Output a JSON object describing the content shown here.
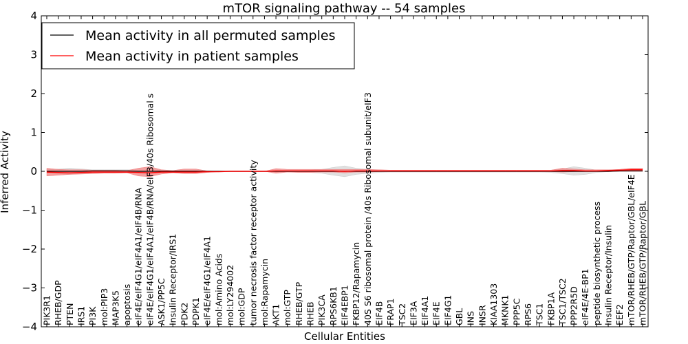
{
  "chart_data": {
    "type": "line",
    "title": "mTOR signaling pathway -- 54 samples",
    "xlabel": "Cellular Entities",
    "ylabel": "Inferred Activity",
    "ylim": [
      -4,
      4
    ],
    "yticks": [
      -4,
      -3,
      -2,
      -1,
      0,
      1,
      2,
      3,
      4
    ],
    "legend_position": "top-left",
    "categories": [
      "PIK3R1",
      "RHEB/GDP",
      "PTEN",
      "IRS1",
      "PI3K",
      "mol:PIP3",
      "MAP3K5",
      "apoptosis",
      "eIF4E/eIF4G1/eIF4A1/eIF4B/RNA",
      "eIF4E/eIF4G1/eIF4A1/eIF4B/RNA/eIF3/40s Ribosomal s",
      "ASK1/PP5C",
      "Insulin Receptor/IRS1",
      "PDK2",
      "PDPK1",
      "eIF4E/eIF4G1/eIF4A1",
      "mol:Amino Acids",
      "mol:LY294002",
      "mol:GDP",
      "tumor necrosis factor receptor activity",
      "mol:Rapamycin",
      "AKT1",
      "mol:GTP",
      "RHEB/GTP",
      "RHEB",
      "PIK3CA",
      "RPS6KB1",
      "EIF4EBP1",
      "FKBP12/Rapamycin",
      "40S S6 ribosomal protein /40s Ribosomal subunit/eIF3",
      "EIF4B",
      "FRAP1",
      "TSC2",
      "EIF3A",
      "EIF4A1",
      "EIF4E",
      "EIF4G1",
      "GBL",
      "INS",
      "INSR",
      "KIAA1303",
      "MKNK1",
      "PPP5C",
      "RPS6",
      "TSC1",
      "FKBP1A",
      "TSC1/TSC2",
      "PPP2R5D",
      "eIF4E/4E-BP1",
      "peptide biosynthetic process",
      "Insulin Receptor/Insulin",
      "EEF2",
      "mTOR/RHEB/GTP/Raptor/GBL/eIF4E",
      "mTOR/RHEB/GTP/Raptor/GBL"
    ],
    "series": [
      {
        "name": "Mean activity in all permuted samples",
        "color": "#000000",
        "values": [
          0.0,
          0.0,
          0.0,
          0.0,
          0.01,
          0.01,
          0.01,
          0.01,
          0.0,
          0.0,
          0.0,
          0.0,
          0.0,
          0.0,
          0.0,
          0.0,
          0.0,
          0.0,
          0.0,
          0.0,
          0.0,
          0.0,
          0.0,
          0.0,
          0.0,
          0.0,
          0.0,
          0.0,
          0.0,
          0.0,
          0.0,
          0.0,
          0.0,
          0.0,
          0.0,
          0.0,
          0.0,
          0.0,
          0.0,
          0.0,
          0.0,
          0.0,
          0.0,
          0.0,
          0.0,
          0.0,
          0.0,
          0.0,
          0.0,
          0.0,
          0.01,
          0.01,
          0.01
        ],
        "band_low": [
          -0.04,
          -0.06,
          -0.08,
          -0.06,
          -0.04,
          -0.03,
          -0.03,
          -0.03,
          -0.03,
          -0.03,
          -0.03,
          -0.02,
          -0.02,
          -0.02,
          -0.01,
          -0.01,
          -0.01,
          -0.01,
          -0.01,
          -0.01,
          -0.02,
          -0.02,
          -0.02,
          -0.03,
          -0.05,
          -0.1,
          -0.14,
          -0.08,
          -0.05,
          -0.03,
          -0.02,
          -0.02,
          -0.02,
          -0.02,
          -0.02,
          -0.02,
          -0.02,
          -0.02,
          -0.02,
          -0.02,
          -0.02,
          -0.02,
          -0.02,
          -0.02,
          -0.03,
          -0.06,
          -0.1,
          -0.08,
          -0.03,
          -0.01,
          -0.01,
          -0.01,
          -0.01
        ],
        "band_high": [
          0.04,
          0.06,
          0.08,
          0.06,
          0.04,
          0.04,
          0.04,
          0.04,
          0.03,
          0.03,
          0.03,
          0.02,
          0.02,
          0.02,
          0.01,
          0.01,
          0.01,
          0.01,
          0.01,
          0.01,
          0.02,
          0.02,
          0.02,
          0.03,
          0.05,
          0.1,
          0.14,
          0.08,
          0.05,
          0.03,
          0.02,
          0.02,
          0.02,
          0.02,
          0.02,
          0.02,
          0.02,
          0.02,
          0.02,
          0.02,
          0.02,
          0.02,
          0.02,
          0.02,
          0.03,
          0.06,
          0.12,
          0.08,
          0.03,
          0.02,
          0.02,
          0.02,
          0.02
        ],
        "band_color": "#cccccc"
      },
      {
        "name": "Mean activity in patient samples",
        "color": "#ff0000",
        "values": [
          -0.02,
          -0.03,
          -0.04,
          -0.03,
          -0.02,
          -0.02,
          -0.02,
          -0.02,
          -0.03,
          -0.04,
          -0.02,
          -0.02,
          -0.02,
          -0.02,
          -0.01,
          -0.01,
          0.0,
          0.0,
          0.0,
          0.0,
          0.01,
          0.01,
          0.01,
          0.01,
          0.01,
          0.01,
          0.0,
          0.01,
          0.01,
          0.01,
          0.01,
          0.01,
          0.01,
          0.01,
          0.01,
          0.01,
          0.01,
          0.01,
          0.01,
          0.01,
          0.01,
          0.01,
          0.01,
          0.01,
          0.01,
          0.02,
          0.02,
          0.01,
          0.01,
          0.02,
          0.03,
          0.04,
          0.04
        ],
        "band_low": [
          -0.12,
          -0.1,
          -0.08,
          -0.07,
          -0.06,
          -0.05,
          -0.05,
          -0.04,
          -0.12,
          -0.14,
          -0.07,
          -0.04,
          -0.06,
          -0.06,
          -0.03,
          -0.01,
          0.0,
          0.0,
          0.0,
          0.0,
          -0.05,
          -0.02,
          -0.03,
          -0.03,
          -0.02,
          -0.02,
          -0.04,
          -0.02,
          -0.02,
          -0.01,
          -0.01,
          -0.01,
          -0.01,
          -0.01,
          -0.01,
          -0.01,
          -0.01,
          -0.01,
          -0.01,
          -0.01,
          -0.01,
          -0.01,
          -0.01,
          -0.01,
          -0.01,
          -0.02,
          -0.01,
          -0.01,
          -0.01,
          -0.01,
          0.0,
          0.0,
          0.0
        ],
        "band_high": [
          0.08,
          0.05,
          0.04,
          0.04,
          0.03,
          0.03,
          0.03,
          0.02,
          0.08,
          0.12,
          0.04,
          0.02,
          0.06,
          0.06,
          0.01,
          0.0,
          0.0,
          0.0,
          0.0,
          0.0,
          0.07,
          0.05,
          0.05,
          0.05,
          0.05,
          0.05,
          0.05,
          0.05,
          0.05,
          0.04,
          0.03,
          0.03,
          0.03,
          0.03,
          0.03,
          0.03,
          0.03,
          0.03,
          0.03,
          0.03,
          0.03,
          0.03,
          0.03,
          0.03,
          0.03,
          0.08,
          0.06,
          0.04,
          0.04,
          0.04,
          0.05,
          0.08,
          0.08
        ],
        "band_color": "#f08080"
      }
    ]
  }
}
